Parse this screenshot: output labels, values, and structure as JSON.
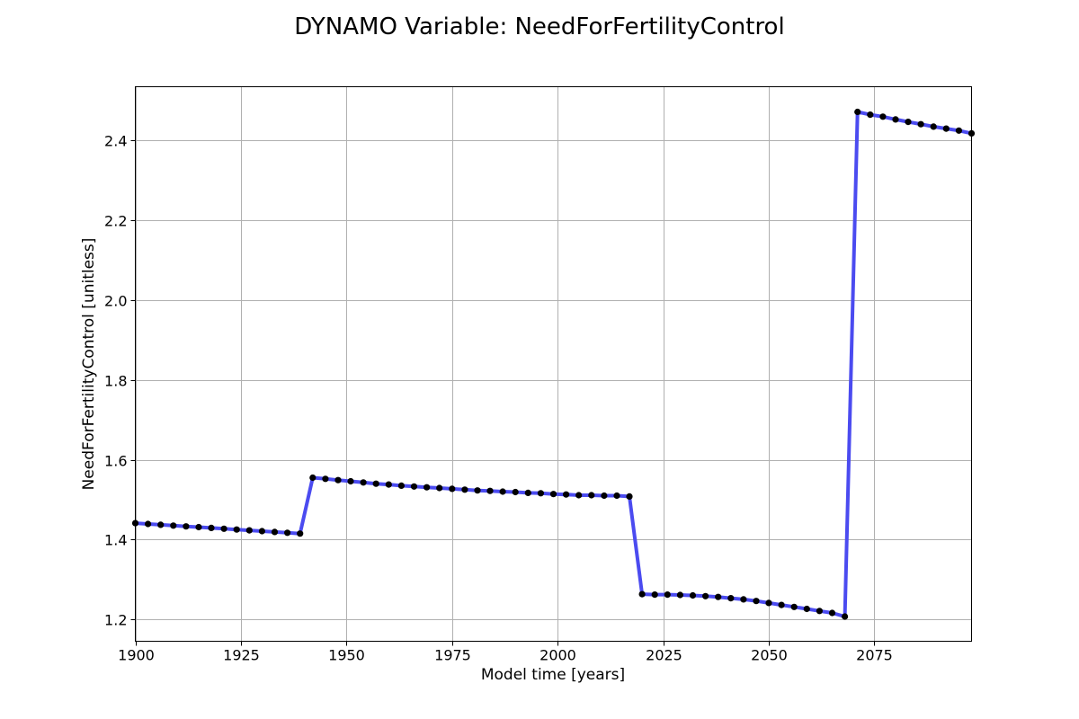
{
  "chart_data": {
    "type": "line",
    "title": "DYNAMO Variable: NeedForFertilityControl",
    "xlabel": "Model time [years]",
    "ylabel": "NeedForFertilityControl [unitless]",
    "xlim": [
      1900,
      2098
    ],
    "ylim": [
      1.145,
      2.535
    ],
    "xticks": [
      1900,
      1925,
      1950,
      1975,
      2000,
      2025,
      2050,
      2075
    ],
    "yticks": [
      1.2,
      1.4,
      1.6,
      1.8,
      2.0,
      2.2,
      2.4
    ],
    "ytick_labels": [
      "1.2",
      "1.4",
      "1.6",
      "1.8",
      "2.0",
      "2.2",
      "2.4"
    ],
    "grid": true,
    "line_color": "#4b4bf0",
    "marker_color": "#000000",
    "series": [
      {
        "x": [
          1900,
          1903,
          1906,
          1909,
          1912,
          1915,
          1918,
          1921,
          1924,
          1927,
          1930,
          1933,
          1936,
          1939,
          1942,
          1945,
          1948,
          1951,
          1954,
          1957,
          1960,
          1963,
          1966,
          1969,
          1972,
          1975,
          1978,
          1981,
          1984,
          1987,
          1990,
          1993,
          1996,
          1999,
          2002,
          2005,
          2008,
          2011,
          2014,
          2017,
          2020,
          2023,
          2026,
          2029,
          2032,
          2035,
          2038,
          2041,
          2044,
          2047,
          2050,
          2053,
          2056,
          2059,
          2062,
          2065,
          2068,
          2071,
          2074,
          2077,
          2080,
          2083,
          2086,
          2089,
          2092,
          2095,
          2098
        ],
        "y": [
          1.441,
          1.439,
          1.437,
          1.435,
          1.433,
          1.431,
          1.429,
          1.427,
          1.425,
          1.423,
          1.421,
          1.419,
          1.417,
          1.415,
          1.555,
          1.552,
          1.549,
          1.546,
          1.543,
          1.54,
          1.538,
          1.535,
          1.533,
          1.531,
          1.529,
          1.527,
          1.525,
          1.523,
          1.522,
          1.52,
          1.519,
          1.517,
          1.516,
          1.514,
          1.513,
          1.511,
          1.511,
          1.51,
          1.51,
          1.508,
          1.263,
          1.262,
          1.262,
          1.261,
          1.26,
          1.258,
          1.256,
          1.253,
          1.25,
          1.246,
          1.241,
          1.236,
          1.231,
          1.226,
          1.221,
          1.216,
          1.207,
          2.472,
          2.465,
          2.46,
          2.453,
          2.447,
          2.441,
          2.435,
          2.43,
          2.425,
          2.418
        ]
      }
    ]
  }
}
